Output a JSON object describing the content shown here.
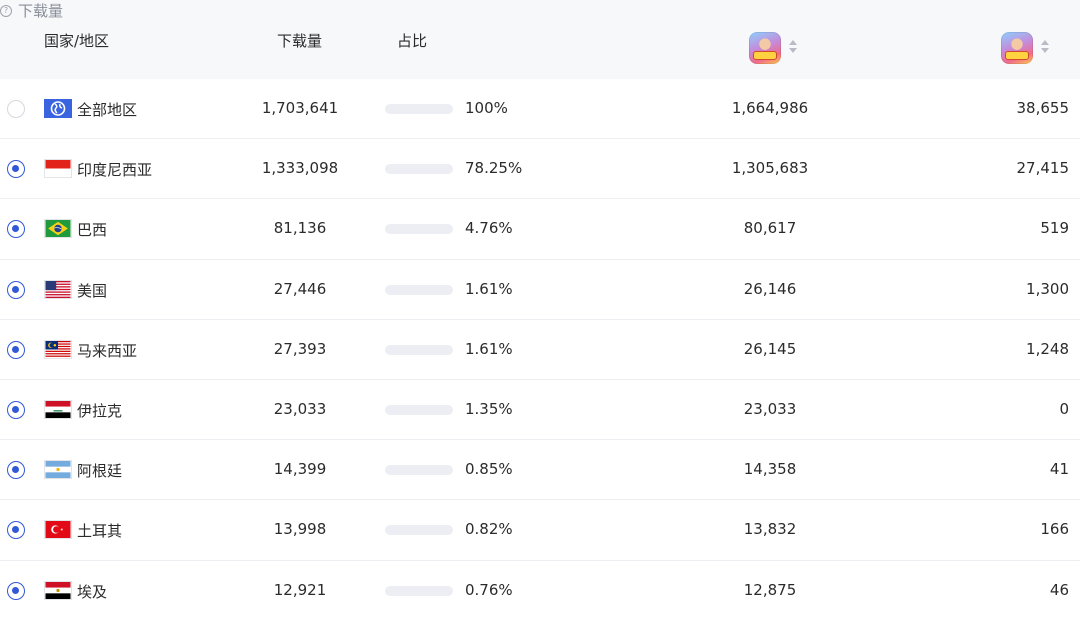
{
  "header": {
    "country": "国家/地区",
    "downloads": "下载量",
    "share": "占比",
    "group_label": "下载量",
    "app_icon": "game-app-icon"
  },
  "rows": [
    {
      "name": "全部地区",
      "flag": "globe",
      "selected": false,
      "downloads": "1,703,641",
      "share": 100,
      "share_label": "100%",
      "app1": "1,664,986",
      "app2": "38,655"
    },
    {
      "name": "印度尼西亚",
      "flag": "id",
      "selected": true,
      "downloads": "1,333,098",
      "share": 78.25,
      "share_label": "78.25%",
      "app1": "1,305,683",
      "app2": "27,415"
    },
    {
      "name": "巴西",
      "flag": "br",
      "selected": true,
      "downloads": "81,136",
      "share": 4.76,
      "share_label": "4.76%",
      "app1": "80,617",
      "app2": "519"
    },
    {
      "name": "美国",
      "flag": "us",
      "selected": true,
      "downloads": "27,446",
      "share": 1.61,
      "share_label": "1.61%",
      "app1": "26,146",
      "app2": "1,300"
    },
    {
      "name": "马来西亚",
      "flag": "my",
      "selected": true,
      "downloads": "27,393",
      "share": 1.61,
      "share_label": "1.61%",
      "app1": "26,145",
      "app2": "1,248"
    },
    {
      "name": "伊拉克",
      "flag": "iq",
      "selected": true,
      "downloads": "23,033",
      "share": 1.35,
      "share_label": "1.35%",
      "app1": "23,033",
      "app2": "0"
    },
    {
      "name": "阿根廷",
      "flag": "ar",
      "selected": true,
      "downloads": "14,399",
      "share": 0.85,
      "share_label": "0.85%",
      "app1": "14,358",
      "app2": "41"
    },
    {
      "name": "土耳其",
      "flag": "tr",
      "selected": true,
      "downloads": "13,998",
      "share": 0.82,
      "share_label": "0.82%",
      "app1": "13,832",
      "app2": "166"
    },
    {
      "name": "埃及",
      "flag": "eg",
      "selected": true,
      "downloads": "12,921",
      "share": 0.76,
      "share_label": "0.76%",
      "app1": "12,875",
      "app2": "46"
    }
  ],
  "colors": {
    "accent": "#3158d6",
    "track": "#eceef3",
    "header_bg": "#f7f8fa"
  }
}
